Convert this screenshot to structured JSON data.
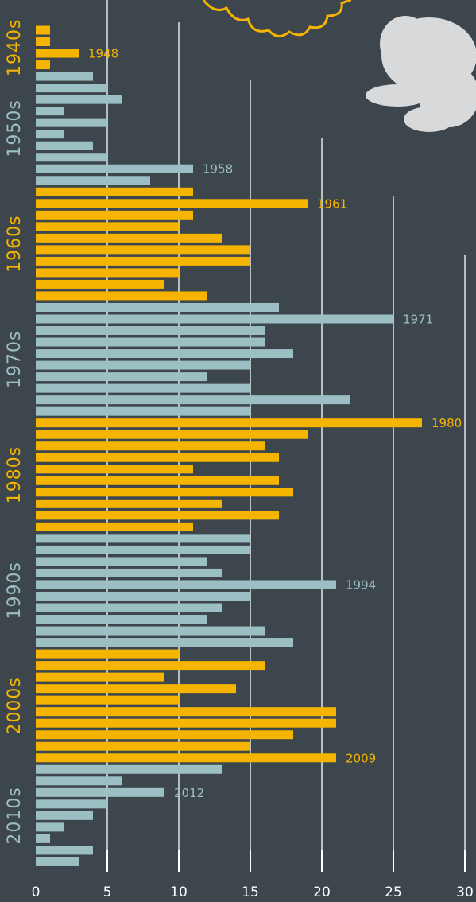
{
  "chart_data": {
    "type": "bar",
    "orientation": "horizontal",
    "xlim": [
      0,
      30
    ],
    "xticks": [
      0,
      5,
      10,
      15,
      20,
      25,
      30
    ],
    "groups": [
      {
        "label": "1940s",
        "color": "#f5b400",
        "categories": [
          null,
          null,
          "1948",
          null
        ],
        "values": [
          1,
          1,
          3,
          1
        ]
      },
      {
        "label": "1950s",
        "color": "#9cbfc3",
        "categories": [
          null,
          null,
          null,
          null,
          null,
          null,
          null,
          null,
          "1958",
          null
        ],
        "values": [
          4,
          5,
          6,
          2,
          5,
          2,
          4,
          5,
          11,
          8
        ]
      },
      {
        "label": "1960s",
        "color": "#f5b400",
        "categories": [
          null,
          "1961",
          null,
          null,
          null,
          null,
          null,
          null,
          null,
          null
        ],
        "values": [
          11,
          19,
          11,
          10,
          13,
          15,
          15,
          10,
          9,
          12
        ]
      },
      {
        "label": "1970s",
        "color": "#9cbfc3",
        "categories": [
          null,
          "1971",
          null,
          null,
          null,
          null,
          null,
          null,
          null,
          null
        ],
        "values": [
          17,
          25,
          16,
          16,
          18,
          15,
          12,
          15,
          22,
          15
        ]
      },
      {
        "label": "1980s",
        "color": "#f5b400",
        "categories": [
          "1980",
          null,
          null,
          null,
          null,
          null,
          null,
          null,
          null,
          null
        ],
        "values": [
          27,
          19,
          16,
          17,
          11,
          17,
          18,
          13,
          17,
          11
        ]
      },
      {
        "label": "1990s",
        "color": "#9cbfc3",
        "categories": [
          null,
          null,
          null,
          null,
          "1994",
          null,
          null,
          null,
          null,
          null
        ],
        "values": [
          15,
          15,
          12,
          13,
          21,
          15,
          13,
          12,
          16,
          18
        ]
      },
      {
        "label": "2000s",
        "color": "#f5b400",
        "categories": [
          null,
          null,
          null,
          null,
          null,
          null,
          null,
          null,
          null,
          "2009"
        ],
        "values": [
          10,
          16,
          9,
          14,
          10,
          21,
          21,
          18,
          15,
          21
        ]
      },
      {
        "label": "2010s",
        "color": "#9cbfc3",
        "categories": [
          null,
          null,
          "2012",
          null,
          null,
          null,
          null,
          null,
          null
        ],
        "values": [
          13,
          6,
          9,
          5,
          4,
          2,
          1,
          4,
          3
        ]
      }
    ]
  }
}
